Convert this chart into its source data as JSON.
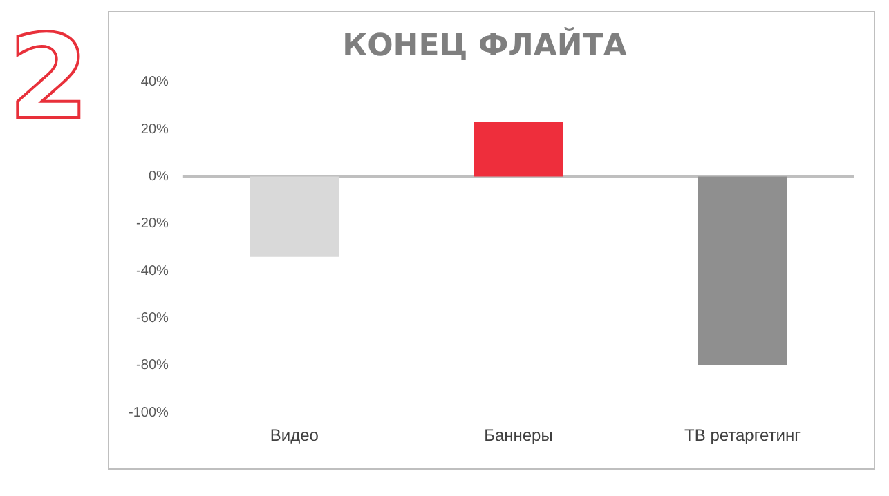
{
  "chart_data": {
    "type": "bar",
    "title": "КОНЕЦ ФЛАЙТА",
    "categories": [
      "Видео",
      "Баннеры",
      "ТВ ретаргетинг"
    ],
    "values": [
      -34,
      23,
      -80
    ],
    "colors": [
      "#d9d9d9",
      "#ee2e3c",
      "#8f8f8f"
    ],
    "ylim": [
      -100,
      40
    ],
    "yticks": [
      {
        "value": -100,
        "label": "-100%"
      },
      {
        "value": -80,
        "label": "-80%"
      },
      {
        "value": -60,
        "label": "-60%"
      },
      {
        "value": -40,
        "label": "-40%"
      },
      {
        "value": -20,
        "label": "-20%"
      },
      {
        "value": 0,
        "label": "0%"
      },
      {
        "value": 20,
        "label": "20%"
      },
      {
        "value": 40,
        "label": "40%"
      }
    ],
    "grid": false,
    "legend": false,
    "ref_lines": [
      {
        "axis": "y",
        "value": 0,
        "color": "#bfbfbf"
      }
    ],
    "annotations": [
      "2"
    ]
  }
}
